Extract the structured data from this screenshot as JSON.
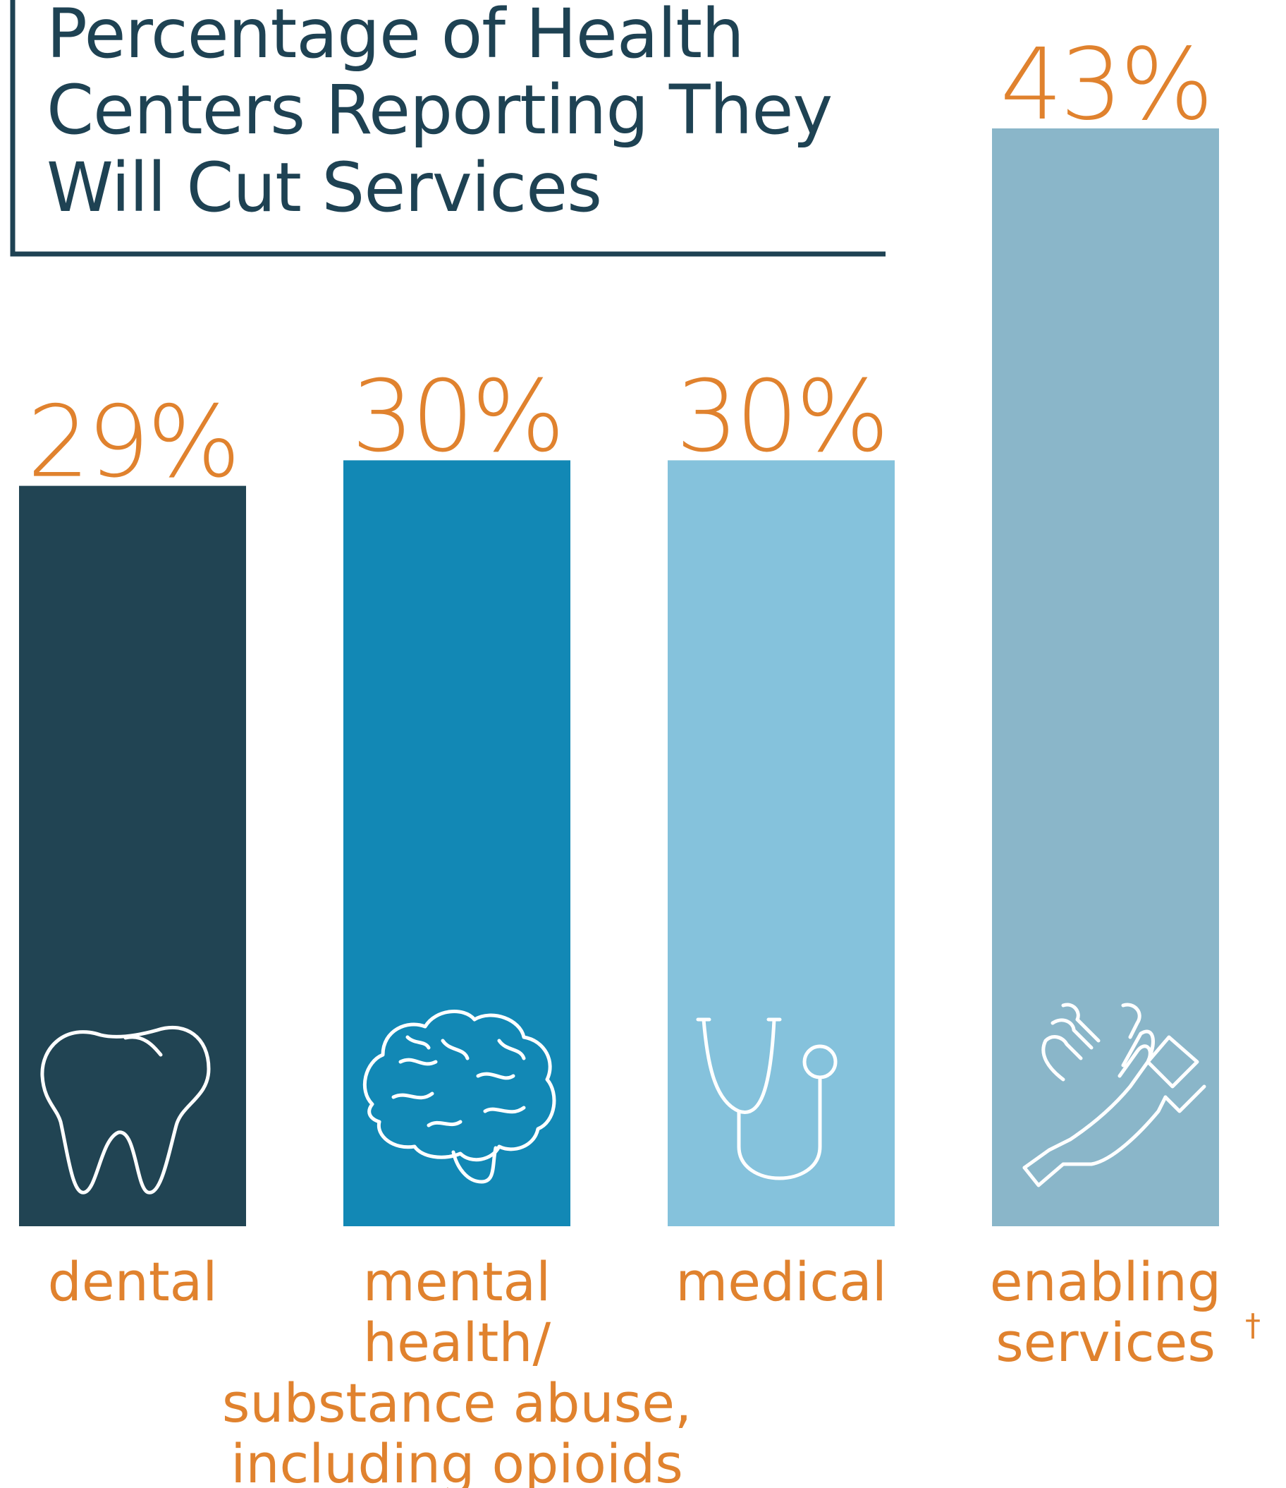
{
  "chart_data": {
    "type": "bar",
    "title_lines": [
      "Percentage of Health",
      "Centers Reporting They",
      "Will Cut Services"
    ],
    "categories": [
      "dental",
      "mental health/ substance abuse, including opioids",
      "medical",
      "enabling services"
    ],
    "category_lines": [
      [
        "dental"
      ],
      [
        "mental",
        "health/",
        "substance abuse,",
        "including opioids"
      ],
      [
        "medical"
      ],
      [
        "enabling",
        "services"
      ]
    ],
    "category_footnote": [
      "",
      "",
      "",
      "†"
    ],
    "values": [
      29,
      30,
      30,
      43
    ],
    "value_labels": [
      "29%",
      "30%",
      "30%",
      "43%"
    ],
    "unit": "%",
    "icons": [
      "tooth-icon",
      "brain-icon",
      "stethoscope-icon",
      "hands-icon"
    ],
    "colors": [
      "#214453",
      "#1288b5",
      "#85c2dc",
      "#8ab6c9"
    ],
    "label_color": "#e0822e",
    "title_color": "#1e4253",
    "legend": "none",
    "grid": false
  }
}
